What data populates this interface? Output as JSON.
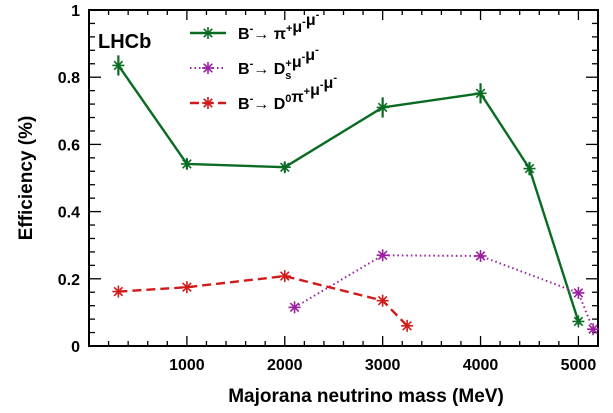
{
  "chart_data": {
    "type": "line",
    "experiment_label": "LHCb",
    "xlabel": "Majorana neutrino mass (MeV)",
    "ylabel": "Efficiency (%)",
    "xlim": [
      0,
      5200
    ],
    "ylim": [
      0,
      1
    ],
    "x_ticks": [
      1000,
      2000,
      3000,
      4000,
      5000
    ],
    "x_tick_labels": [
      "1000",
      "2000",
      "3000",
      "4000",
      "5000"
    ],
    "y_ticks": [
      0,
      0.2,
      0.4,
      0.6,
      0.8,
      1
    ],
    "y_tick_labels": [
      "0",
      "0.2",
      "0.4",
      "0.6",
      "0.8",
      "1"
    ],
    "grid": false,
    "legend_position": "top-left",
    "series": [
      {
        "name": "B⁻→ π⁺μ⁻μ⁻",
        "legend": {
          "base": "B",
          "sup1": "-",
          "arrow": "→ ",
          "rest": [
            [
              "",
              "π"
            ],
            [
              "sup",
              "+"
            ],
            [
              "",
              "μ"
            ],
            [
              "sup",
              "-"
            ],
            [
              "",
              "μ"
            ],
            [
              "sup",
              "-"
            ]
          ]
        },
        "color": "#0a6b22",
        "line_style": "solid",
        "x": [
          300,
          1000,
          2000,
          3000,
          4000,
          4500,
          5000
        ],
        "y": [
          0.835,
          0.542,
          0.532,
          0.71,
          0.752,
          0.528,
          0.073
        ],
        "y_err": [
          0.03,
          0.015,
          0.015,
          0.03,
          0.03,
          0.02,
          0.01
        ]
      },
      {
        "name": "B⁻→ Ds⁺μ⁻μ⁻",
        "legend": {
          "base": "B",
          "sup1": "-",
          "arrow": "→ ",
          "rest": [
            [
              "",
              "D"
            ],
            [
              "subsup",
              "s",
              "+"
            ],
            [
              "",
              "μ"
            ],
            [
              "sup",
              "-"
            ],
            [
              "",
              "μ"
            ],
            [
              "sup",
              "-"
            ]
          ]
        },
        "color": "#9b1fa0",
        "line_style": "dotted",
        "x": [
          2100,
          3000,
          4000,
          5000,
          5150
        ],
        "y": [
          0.115,
          0.27,
          0.268,
          0.158,
          0.05
        ],
        "y_err": [
          0,
          0,
          0,
          0,
          0
        ]
      },
      {
        "name": "B⁻→ D⁰π⁺μ⁻μ⁻",
        "legend": {
          "base": "B",
          "sup1": "-",
          "arrow": "→ ",
          "rest": [
            [
              "",
              "D"
            ],
            [
              "sup",
              "0"
            ],
            [
              "",
              "π"
            ],
            [
              "sup",
              "+"
            ],
            [
              "",
              "μ"
            ],
            [
              "sup",
              "-"
            ],
            [
              "",
              "μ"
            ],
            [
              "sup",
              "-"
            ]
          ]
        },
        "color": "#d21a1a",
        "line_style": "dashed",
        "x": [
          300,
          1000,
          2000,
          3000,
          3250
        ],
        "y": [
          0.162,
          0.175,
          0.208,
          0.135,
          0.06
        ],
        "y_err": [
          0,
          0,
          0,
          0,
          0
        ]
      }
    ]
  }
}
